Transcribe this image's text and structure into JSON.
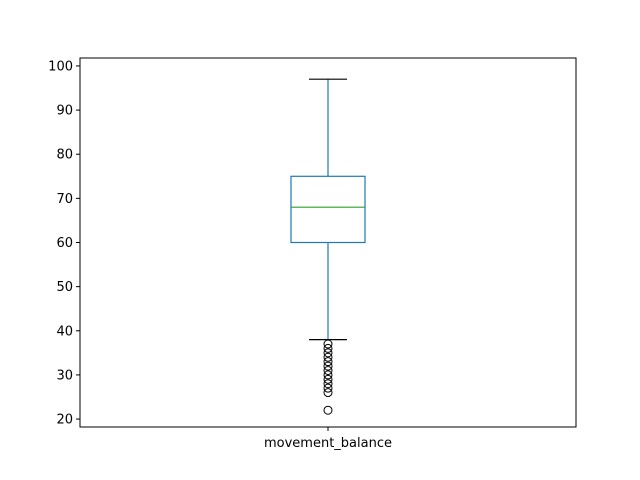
{
  "chart_data": {
    "type": "box",
    "title": "",
    "xlabel": "",
    "ylabel": "",
    "categories": [
      "movement_balance"
    ],
    "ylim": [
      18.2,
      101.8
    ],
    "yticks": [
      20,
      30,
      40,
      50,
      60,
      70,
      80,
      90,
      100
    ],
    "grid": false,
    "boxes": [
      {
        "category": "movement_balance",
        "whisker_low": 38,
        "q1": 60,
        "median": 68,
        "q3": 75,
        "whisker_high": 97,
        "outliers": [
          22,
          26,
          27,
          28,
          29,
          30,
          31,
          32,
          33,
          34,
          35,
          36,
          37
        ]
      }
    ],
    "colors": {
      "box": "#1f77b4",
      "whisker": "#1f77b4",
      "median": "#2ca02c",
      "cap": "#000000",
      "outlier": "#000000"
    }
  }
}
